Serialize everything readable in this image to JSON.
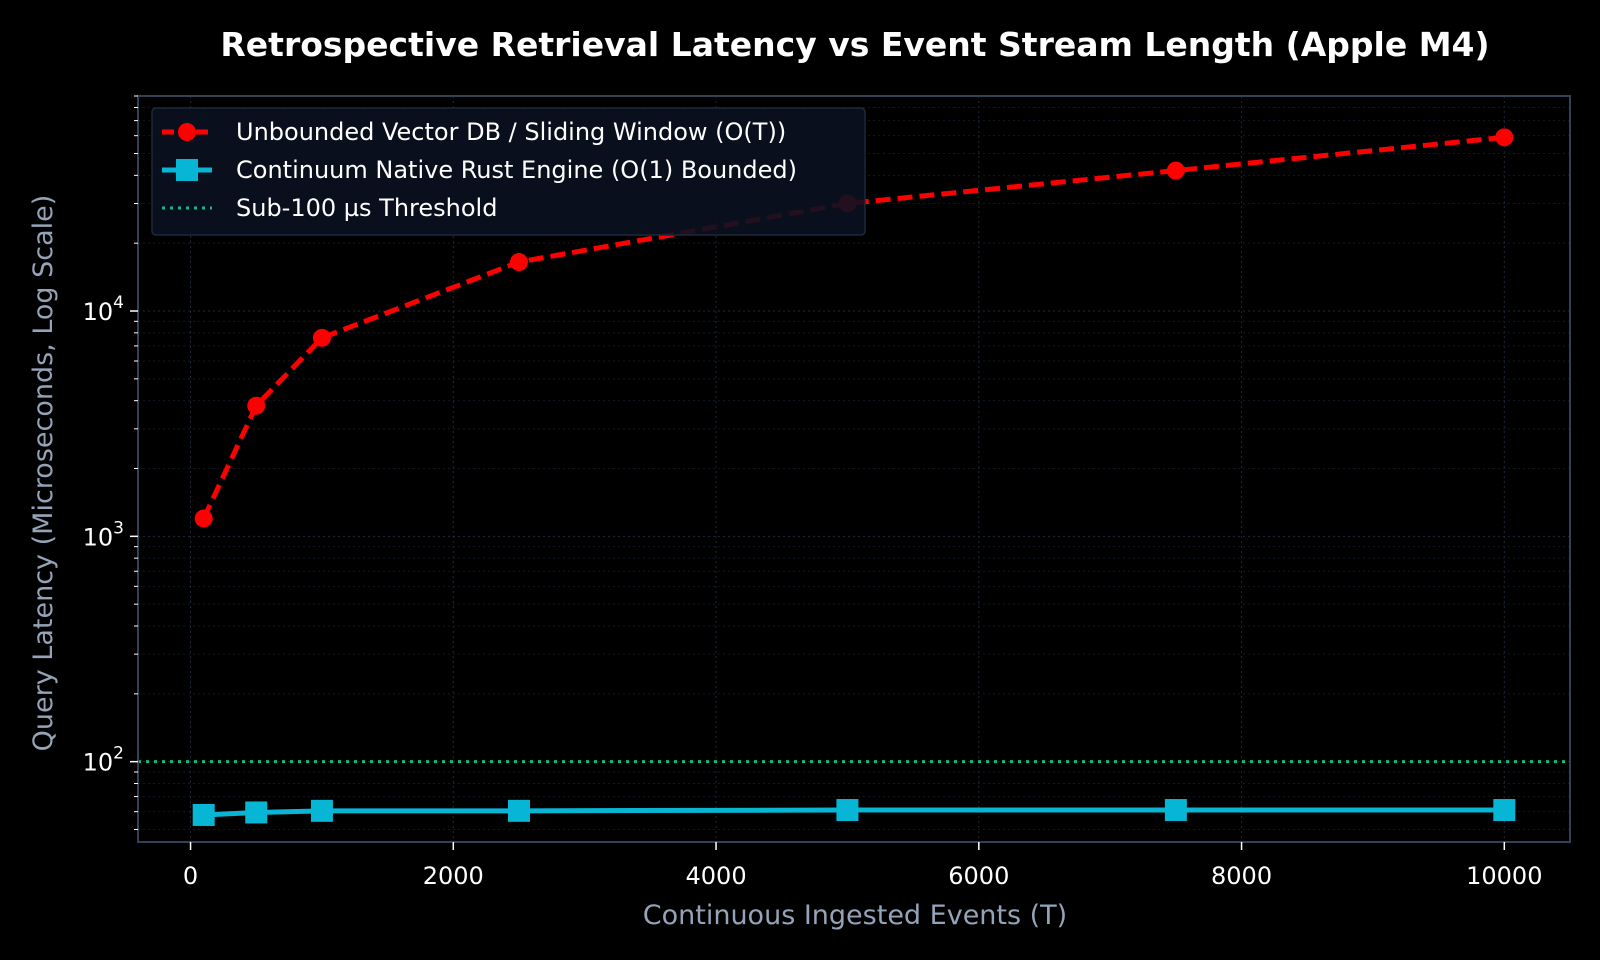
{
  "chart_data": {
    "type": "line",
    "title": "Retrospective Retrieval Latency vs Event Stream Length (Apple M4)",
    "xlabel": "Continuous Ingested Events (T)",
    "ylabel": "Query Latency (Microseconds, Log Scale)",
    "x_scale": "linear",
    "y_scale": "log",
    "xlim": [
      -400,
      10500
    ],
    "ylim": [
      44,
      90000
    ],
    "x_ticks": [
      0,
      2000,
      4000,
      6000,
      8000,
      10000
    ],
    "x_tick_labels": [
      "0",
      "2000",
      "4000",
      "6000",
      "8000",
      "10000"
    ],
    "y_ticks": [
      100,
      1000,
      10000
    ],
    "y_tick_base": "10",
    "y_tick_exponents": [
      "2",
      "3",
      "4"
    ],
    "grid": true,
    "legend_position": "top-left",
    "background": "#000000",
    "series": [
      {
        "name": "Unbounded Vector DB / Sliding Window (O(T))",
        "color": "#ff0000",
        "line_style": "dashed",
        "marker": "circle",
        "x": [
          100,
          500,
          1000,
          2500,
          5000,
          7500,
          10000
        ],
        "y": [
          1200,
          3800,
          7600,
          16500,
          30000,
          42000,
          59000
        ]
      },
      {
        "name": "Continuum Native Rust Engine (O(1) Bounded)",
        "color": "#06b6d4",
        "line_style": "solid",
        "marker": "square",
        "x": [
          100,
          500,
          1000,
          2500,
          5000,
          7500,
          10000
        ],
        "y": [
          58,
          59.5,
          60.5,
          60.5,
          61,
          61,
          61
        ]
      }
    ],
    "reference_lines": [
      {
        "name": "Sub-100 µs Threshold",
        "color": "#10b981",
        "line_style": "dotted",
        "y": 100
      }
    ]
  }
}
